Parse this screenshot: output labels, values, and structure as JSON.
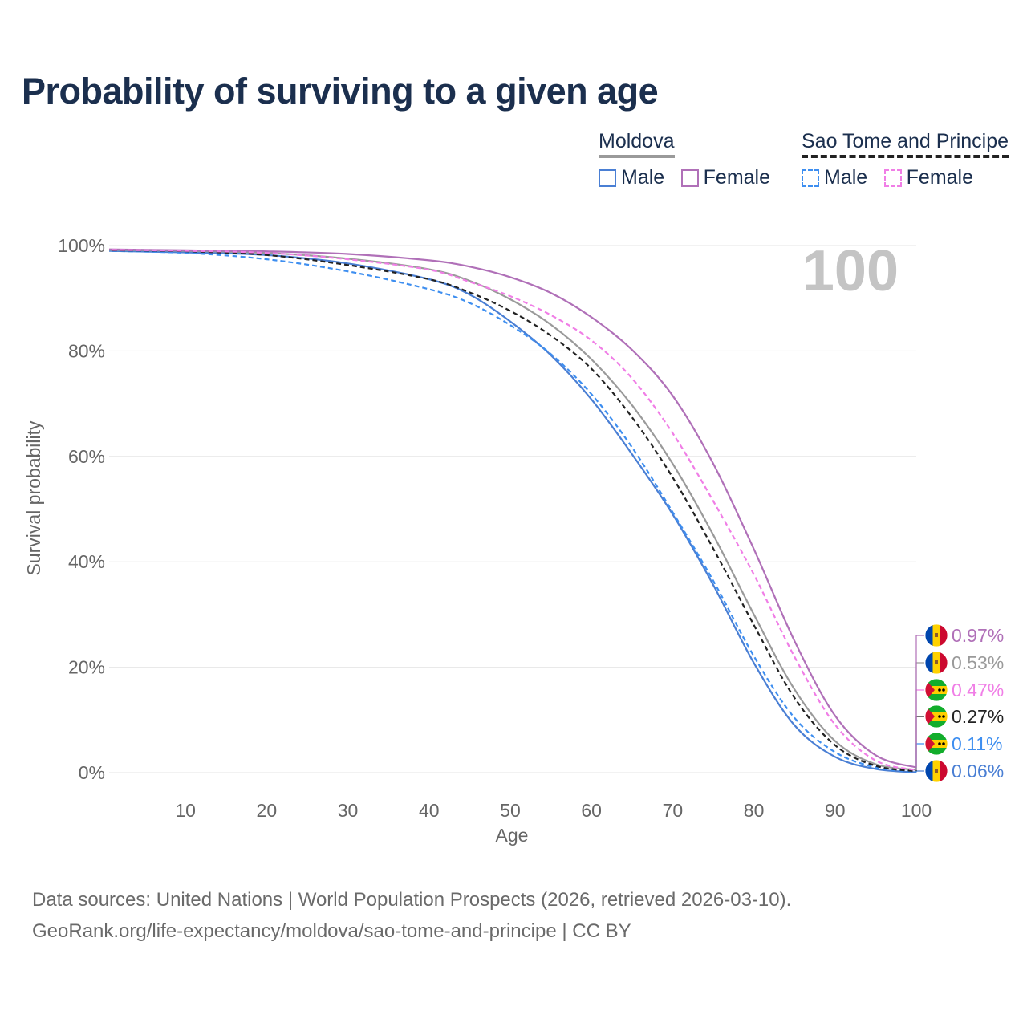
{
  "title": "Probability of surviving to a given age",
  "legend": {
    "groups": [
      {
        "name": "Moldova",
        "style": "solid",
        "items": [
          {
            "label": "Male",
            "color": "#4a7fd4"
          },
          {
            "label": "Female",
            "color": "#b070b8"
          }
        ]
      },
      {
        "name": "Sao Tome and Principe",
        "style": "dashed",
        "items": [
          {
            "label": "Male",
            "color": "#3d8ef0"
          },
          {
            "label": "Female",
            "color": "#f07ee6"
          }
        ]
      }
    ]
  },
  "chart_data": {
    "type": "line",
    "title": "Probability of surviving to a given age",
    "xlabel": "Age",
    "ylabel": "Survival probability",
    "xlim": [
      0.6,
      100
    ],
    "ylim": [
      0,
      100
    ],
    "x_ticks": [
      10,
      20,
      30,
      40,
      50,
      60,
      70,
      80,
      90,
      100
    ],
    "y_ticks": [
      0,
      20,
      40,
      60,
      80,
      100
    ],
    "y_tick_labels": [
      "0%",
      "20%",
      "40%",
      "60%",
      "80%",
      "100%"
    ],
    "grid": true,
    "year_label": "100",
    "x": [
      0,
      10,
      20,
      30,
      40,
      45,
      50,
      55,
      60,
      65,
      70,
      75,
      80,
      85,
      90,
      95,
      100
    ],
    "series": [
      {
        "name": "Moldova Male",
        "country": "Moldova",
        "sex": "Male",
        "color": "#4a7fd4",
        "dash": false,
        "values": [
          99.0,
          98.7,
          98.2,
          96.6,
          93.6,
          90.7,
          85.6,
          79.2,
          70.8,
          60.4,
          49.0,
          35.6,
          20.8,
          9.0,
          3.0,
          0.7,
          0.06
        ],
        "end_label": "0.06%",
        "flag": "moldova"
      },
      {
        "name": "Moldova Total",
        "country": "Moldova",
        "sex": "Total",
        "color": "#9a9a9a",
        "dash": false,
        "values": [
          99.2,
          99.0,
          98.6,
          97.5,
          95.5,
          93.3,
          89.8,
          85.0,
          78.4,
          69.7,
          58.6,
          45.1,
          30.0,
          15.8,
          6.0,
          1.6,
          0.53
        ],
        "end_label": "0.53%",
        "flag": "moldova"
      },
      {
        "name": "Moldova Female",
        "country": "Moldova",
        "sex": "Female",
        "color": "#b070b8",
        "dash": false,
        "values": [
          99.3,
          99.1,
          98.9,
          98.4,
          97.2,
          96.0,
          94.0,
          91.0,
          86.4,
          80.2,
          71.5,
          58.6,
          42.4,
          25.0,
          10.8,
          3.3,
          0.97
        ],
        "end_label": "0.97%",
        "flag": "moldova"
      },
      {
        "name": "Sao Tome and Principe Male",
        "country": "Sao Tome and Principe",
        "sex": "Male",
        "color": "#3d8ef0",
        "dash": true,
        "values": [
          99.0,
          98.6,
          97.4,
          95.1,
          91.7,
          89.1,
          84.9,
          79.4,
          71.8,
          61.7,
          49.4,
          36.4,
          22.1,
          10.4,
          3.9,
          1.0,
          0.11
        ],
        "end_label": "0.11%",
        "flag": "sao-tome"
      },
      {
        "name": "Sao Tome and Principe Total",
        "country": "Sao Tome and Principe",
        "sex": "Total",
        "color": "#222222",
        "dash": true,
        "values": [
          99.1,
          98.9,
          98.2,
          96.3,
          93.6,
          91.1,
          87.6,
          82.9,
          76.6,
          67.4,
          56.0,
          42.5,
          28.0,
          14.2,
          5.2,
          1.3,
          0.27
        ],
        "end_label": "0.27%",
        "flag": "sao-tome"
      },
      {
        "name": "Sao Tome and Principe Female",
        "country": "Sao Tome and Principe",
        "sex": "Female",
        "color": "#f07ee6",
        "dash": true,
        "values": [
          99.2,
          99.0,
          98.6,
          97.4,
          95.4,
          93.1,
          90.4,
          86.8,
          82.0,
          74.8,
          64.4,
          51.5,
          37.6,
          22.0,
          9.1,
          2.3,
          0.47
        ],
        "end_label": "0.47%",
        "flag": "sao-tome"
      }
    ]
  },
  "footer": {
    "line1": "Data sources: United Nations | World Population Prospects (2026, retrieved 2026-03-10).",
    "line2": "GeoRank.org/life-expectancy/moldova/sao-tome-and-principe | CC BY"
  }
}
